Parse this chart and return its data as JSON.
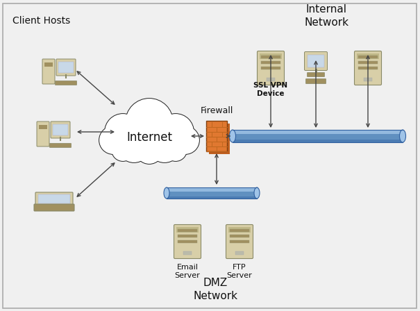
{
  "bg_color": "#f0f0f0",
  "title_internal": "Internal\nNetwork",
  "title_client": "Client Hosts",
  "title_internet": "Internet",
  "title_firewall": "Firewall",
  "title_dmz": "DMZ\nNetwork",
  "title_ssl": "SSL VPN\nDevice",
  "label_email": "Email\nServer",
  "label_ftp": "FTP\nServer",
  "firewall_orange": "#e07830",
  "cloud_color": "#ffffff",
  "cloud_edge": "#222222",
  "tube_color": "#6090c0",
  "tube_highlight": "#a0c4e8",
  "tube_dark": "#3060a0",
  "server_body": "#d8cfa8",
  "server_mid": "#c0b888",
  "server_dark": "#a09060",
  "screen_color": "#c8d8e8",
  "arrow_color": "#444444",
  "text_color": "#111111",
  "font_family": "DejaVu Sans"
}
